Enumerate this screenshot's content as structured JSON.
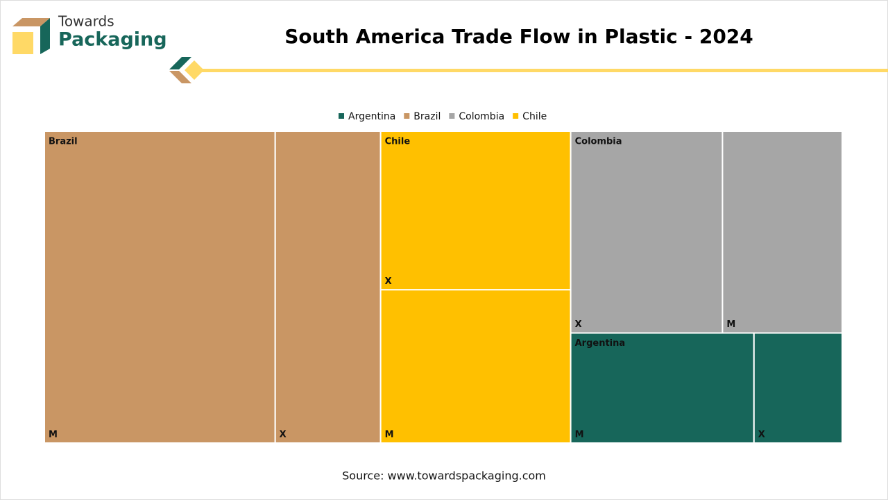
{
  "brand": {
    "line1": "Towards",
    "line2": "Packaging"
  },
  "chart_data": {
    "type": "treemap",
    "title": "South America Trade Flow in Plastic - 2024",
    "legend": [
      "Argentina",
      "Brazil",
      "Colombia",
      "Chile"
    ],
    "series": [
      {
        "name": "Brazil",
        "color": "#c99664",
        "labels": [
          "M",
          "X"
        ],
        "values": [
          28.9,
          13.2
        ]
      },
      {
        "name": "Chile",
        "color": "#ffc000",
        "labels": [
          "X",
          "M"
        ],
        "values": [
          12.1,
          11.7
        ]
      },
      {
        "name": "Colombia",
        "color": "#a6a6a6",
        "labels": [
          "X",
          "M"
        ],
        "values": [
          12.3,
          9.7
        ]
      },
      {
        "name": "Argentina",
        "color": "#17665a",
        "labels": [
          "M",
          "X"
        ],
        "values": [
          8.1,
          3.9
        ]
      }
    ]
  },
  "source": "Source: www.towardspackaging.com"
}
